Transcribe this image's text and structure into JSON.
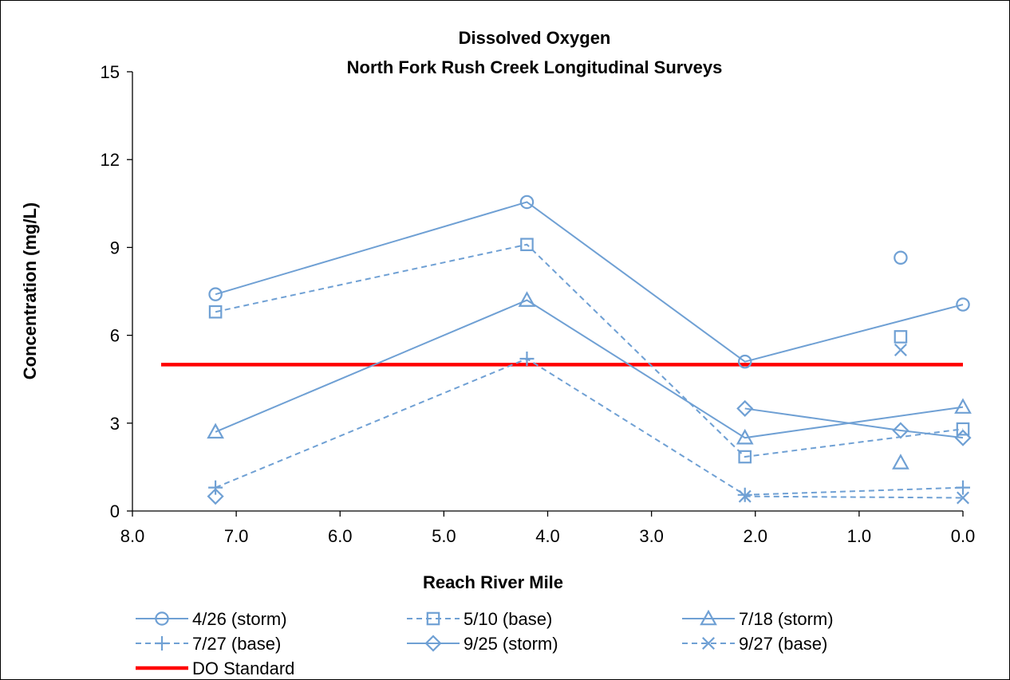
{
  "chart_data": {
    "type": "line",
    "title": "Dissolved Oxygen",
    "subtitle": "North Fork Rush Creek Longitudinal Surveys",
    "xlabel": "Reach River Mile",
    "ylabel": "Concentration (mg/L)",
    "xlim": [
      8.0,
      0.0
    ],
    "x_reversed": true,
    "ylim": [
      0,
      15
    ],
    "x_ticks": [
      "8.0",
      "7.0",
      "6.0",
      "5.0",
      "4.0",
      "3.0",
      "2.0",
      "1.0",
      "0.0"
    ],
    "y_ticks": [
      "0",
      "3",
      "6",
      "9",
      "12",
      "15"
    ],
    "grid": false,
    "legend_position": "bottom",
    "series_color": "#6fa0d4",
    "series": [
      {
        "name": "4/26 (storm)",
        "marker": "circle",
        "dash": false,
        "line": [
          [
            7.2,
            7.4
          ],
          [
            4.2,
            10.55
          ],
          [
            2.1,
            5.1
          ],
          [
            0.0,
            7.05
          ]
        ],
        "extra_points": [
          [
            0.6,
            8.65
          ]
        ]
      },
      {
        "name": "5/10 (base)",
        "marker": "square",
        "dash": true,
        "line": [
          [
            7.2,
            6.8
          ],
          [
            4.2,
            9.1
          ],
          [
            2.1,
            1.85
          ],
          [
            0.0,
            2.8
          ]
        ],
        "extra_points": [
          [
            0.6,
            5.95
          ]
        ]
      },
      {
        "name": "7/18 (storm)",
        "marker": "triangle",
        "dash": false,
        "line": [
          [
            7.2,
            2.7
          ],
          [
            4.2,
            7.2
          ],
          [
            2.1,
            2.5
          ],
          [
            0.0,
            3.55
          ]
        ],
        "extra_points": [
          [
            0.6,
            1.65
          ]
        ]
      },
      {
        "name": "7/27 (base)",
        "marker": "plus",
        "dash": true,
        "line": [
          [
            7.2,
            0.8
          ],
          [
            4.2,
            5.2
          ],
          [
            2.1,
            0.55
          ],
          [
            0.0,
            0.8
          ]
        ],
        "extra_points": []
      },
      {
        "name": "9/25 (storm)",
        "marker": "diamond",
        "dash": false,
        "line": [
          [
            2.1,
            3.5
          ],
          [
            0.6,
            2.75
          ],
          [
            0.0,
            2.5
          ]
        ],
        "extra_points": [
          [
            7.2,
            0.5
          ]
        ]
      },
      {
        "name": "9/27 (base)",
        "marker": "x",
        "dash": true,
        "line": [
          [
            2.1,
            0.5
          ],
          [
            0.0,
            0.45
          ]
        ],
        "extra_points": [
          [
            0.6,
            5.5
          ]
        ]
      }
    ],
    "reference_line": {
      "name": "DO Standard",
      "value": 5.0,
      "color": "#ff0000",
      "x_range": [
        8.0,
        0.0
      ]
    }
  }
}
